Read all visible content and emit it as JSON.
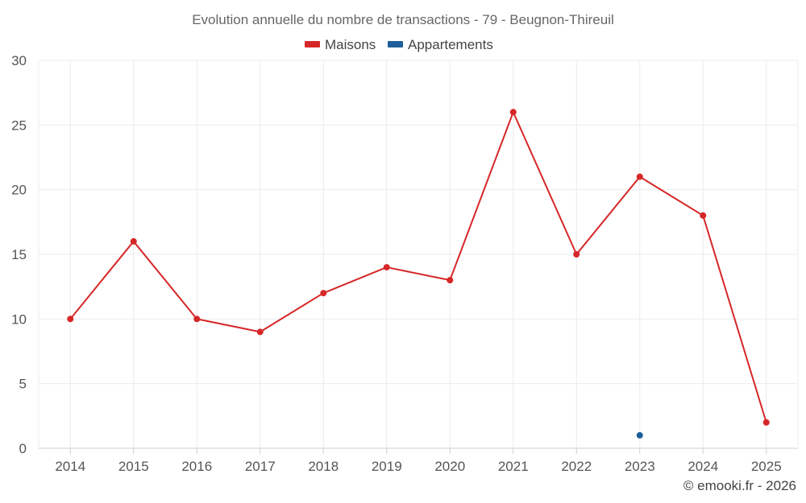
{
  "chart_data": {
    "type": "line",
    "title": "Evolution annuelle du nombre de transactions - 79 - Beugnon-Thireuil",
    "categories": [
      "2014",
      "2015",
      "2016",
      "2017",
      "2018",
      "2019",
      "2020",
      "2021",
      "2022",
      "2023",
      "2024",
      "2025"
    ],
    "series": [
      {
        "name": "Maisons",
        "color": "#d62728",
        "values": [
          10,
          16,
          10,
          9,
          12,
          14,
          13,
          26,
          15,
          21,
          18,
          2
        ]
      },
      {
        "name": "Appartements",
        "color": "#1f5f99",
        "values": [
          null,
          null,
          null,
          null,
          null,
          null,
          null,
          null,
          null,
          1,
          null,
          null
        ]
      }
    ],
    "ylim": [
      0,
      30
    ],
    "yticks": [
      0,
      5,
      10,
      15,
      20,
      25,
      30
    ],
    "xlabel": "",
    "ylabel": "",
    "grid": true,
    "legend": "top-center"
  },
  "credit": "© emooki.fr - 2026"
}
